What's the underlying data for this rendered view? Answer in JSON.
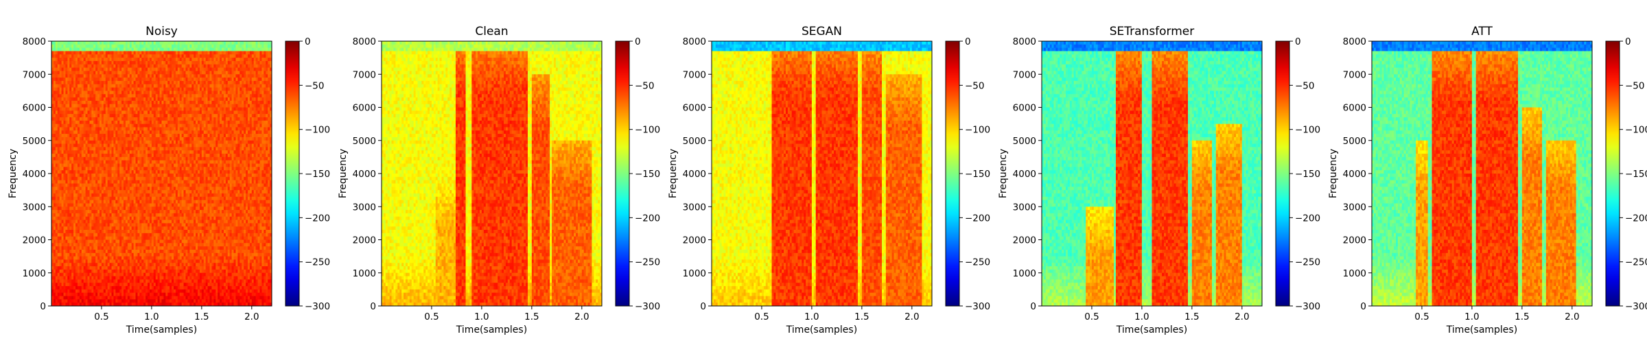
{
  "chart_data": {
    "type": "heatmap",
    "colormap": "jet",
    "xlabel": "Time(samples)",
    "ylabel": "Frequency",
    "xlim": [
      0,
      2.2
    ],
    "ylim": [
      0,
      8000
    ],
    "x_ticks": [
      "0.5",
      "1.0",
      "1.5",
      "2.0"
    ],
    "y_ticks": [
      "0",
      "1000",
      "2000",
      "3000",
      "4000",
      "5000",
      "6000",
      "7000",
      "8000"
    ],
    "colorbar_ticks": [
      "0",
      "−50",
      "−100",
      "−150",
      "−200",
      "−250",
      "−300"
    ],
    "colorbar_range": [
      -300,
      0
    ],
    "panels": [
      {
        "title": "Noisy",
        "background_level": 0.8,
        "top_band_level": 0.5,
        "speech_segments": [],
        "low_freq_boost": 0.08
      },
      {
        "title": "Clean",
        "background_level": 0.62,
        "top_band_level": 0.55,
        "speech_segments": [
          {
            "start": 0.55,
            "end": 0.75,
            "level": 0.7,
            "max_freq": 4000
          },
          {
            "start": 0.75,
            "end": 0.85,
            "level": 0.82,
            "max_freq": 8000
          },
          {
            "start": 0.9,
            "end": 1.45,
            "level": 0.82,
            "max_freq": 8000
          },
          {
            "start": 1.5,
            "end": 1.68,
            "level": 0.8,
            "max_freq": 7000
          },
          {
            "start": 1.7,
            "end": 2.1,
            "level": 0.78,
            "max_freq": 5000
          }
        ],
        "low_freq_boost": 0.08
      },
      {
        "title": "SEGAN",
        "background_level": 0.62,
        "top_band_level": 0.32,
        "speech_segments": [
          {
            "start": 0.6,
            "end": 1.0,
            "level": 0.82,
            "max_freq": 8000
          },
          {
            "start": 1.05,
            "end": 1.45,
            "level": 0.82,
            "max_freq": 8000
          },
          {
            "start": 1.5,
            "end": 1.7,
            "level": 0.8,
            "max_freq": 8000
          },
          {
            "start": 1.75,
            "end": 2.1,
            "level": 0.78,
            "max_freq": 7000
          }
        ],
        "low_freq_boost": 0.06
      },
      {
        "title": "SETransformer",
        "background_level": 0.45,
        "top_band_level": 0.25,
        "speech_segments": [
          {
            "start": 0.45,
            "end": 0.72,
            "level": 0.72,
            "max_freq": 3000
          },
          {
            "start": 0.75,
            "end": 1.0,
            "level": 0.82,
            "max_freq": 7700
          },
          {
            "start": 1.1,
            "end": 1.45,
            "level": 0.82,
            "max_freq": 7700
          },
          {
            "start": 1.5,
            "end": 1.7,
            "level": 0.75,
            "max_freq": 5000
          },
          {
            "start": 1.75,
            "end": 2.0,
            "level": 0.75,
            "max_freq": 5500
          }
        ],
        "low_freq_boost": 0.1
      },
      {
        "title": "ATT",
        "background_level": 0.47,
        "top_band_level": 0.25,
        "speech_segments": [
          {
            "start": 0.45,
            "end": 0.55,
            "level": 0.72,
            "max_freq": 5000
          },
          {
            "start": 0.6,
            "end": 1.0,
            "level": 0.82,
            "max_freq": 7700
          },
          {
            "start": 1.05,
            "end": 1.45,
            "level": 0.82,
            "max_freq": 7700
          },
          {
            "start": 1.5,
            "end": 1.7,
            "level": 0.75,
            "max_freq": 6000
          },
          {
            "start": 1.75,
            "end": 2.05,
            "level": 0.75,
            "max_freq": 5000
          }
        ],
        "low_freq_boost": 0.1
      }
    ]
  }
}
